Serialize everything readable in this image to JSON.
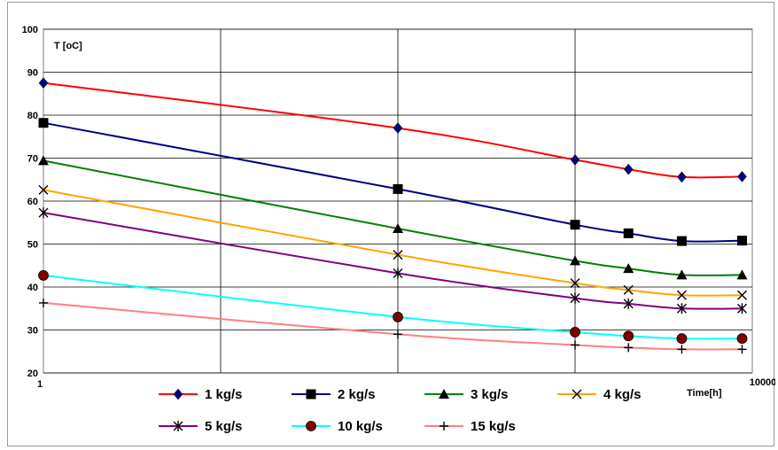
{
  "chart_data": {
    "type": "line",
    "ylabel": "T [oC]",
    "xlabel": "Time[h]",
    "xscale": "log",
    "xlim": [
      1,
      10000
    ],
    "ylim": [
      20,
      100
    ],
    "yticks": [
      20,
      30,
      40,
      50,
      60,
      70,
      80,
      90,
      100
    ],
    "xtick_labels": [
      "1",
      "10000"
    ],
    "grid": true,
    "legend_position": "bottom",
    "series": [
      {
        "name": "1 kg/s",
        "color": "#ff0000",
        "marker": "diamond",
        "marker_color": "#000080",
        "x": [
          1,
          100,
          1000,
          2000,
          4000,
          8760
        ],
        "y": [
          87.5,
          77,
          69.6,
          67.4,
          65.6,
          65.7
        ]
      },
      {
        "name": "2 kg/s",
        "color": "#000080",
        "marker": "square",
        "marker_color": "#000000",
        "x": [
          1,
          100,
          1000,
          2000,
          4000,
          8760
        ],
        "y": [
          78.2,
          62.8,
          54.5,
          52.5,
          50.7,
          50.8
        ]
      },
      {
        "name": "3 kg/s",
        "color": "#008000",
        "marker": "triangle",
        "marker_color": "#000000",
        "x": [
          1,
          100,
          1000,
          2000,
          4000,
          8760
        ],
        "y": [
          69.4,
          53.6,
          46.1,
          44.3,
          42.8,
          42.8
        ]
      },
      {
        "name": "4 kg/s",
        "color": "#ffa500",
        "marker": "x",
        "marker_color": "#000000",
        "x": [
          1,
          100,
          1000,
          2000,
          4000,
          8760
        ],
        "y": [
          62.6,
          47.5,
          40.9,
          39.3,
          38.1,
          38.1
        ]
      },
      {
        "name": "5 kg/s",
        "color": "#800080",
        "marker": "star",
        "marker_color": "#000000",
        "x": [
          1,
          100,
          1000,
          2000,
          4000,
          8760
        ],
        "y": [
          57.3,
          43.2,
          37.4,
          36.1,
          35,
          35
        ]
      },
      {
        "name": "10 kg/s",
        "color": "#00ffff",
        "marker": "circle",
        "marker_color": "#800000",
        "x": [
          1,
          100,
          1000,
          2000,
          4000,
          8760
        ],
        "y": [
          42.7,
          33,
          29.5,
          28.6,
          28,
          28
        ]
      },
      {
        "name": "15 kg/s",
        "color": "#ff8080",
        "marker": "plus",
        "marker_color": "#000000",
        "x": [
          1,
          100,
          1000,
          2000,
          4000,
          8760
        ],
        "y": [
          36.3,
          29,
          26.5,
          25.9,
          25.5,
          25.5
        ]
      }
    ]
  }
}
